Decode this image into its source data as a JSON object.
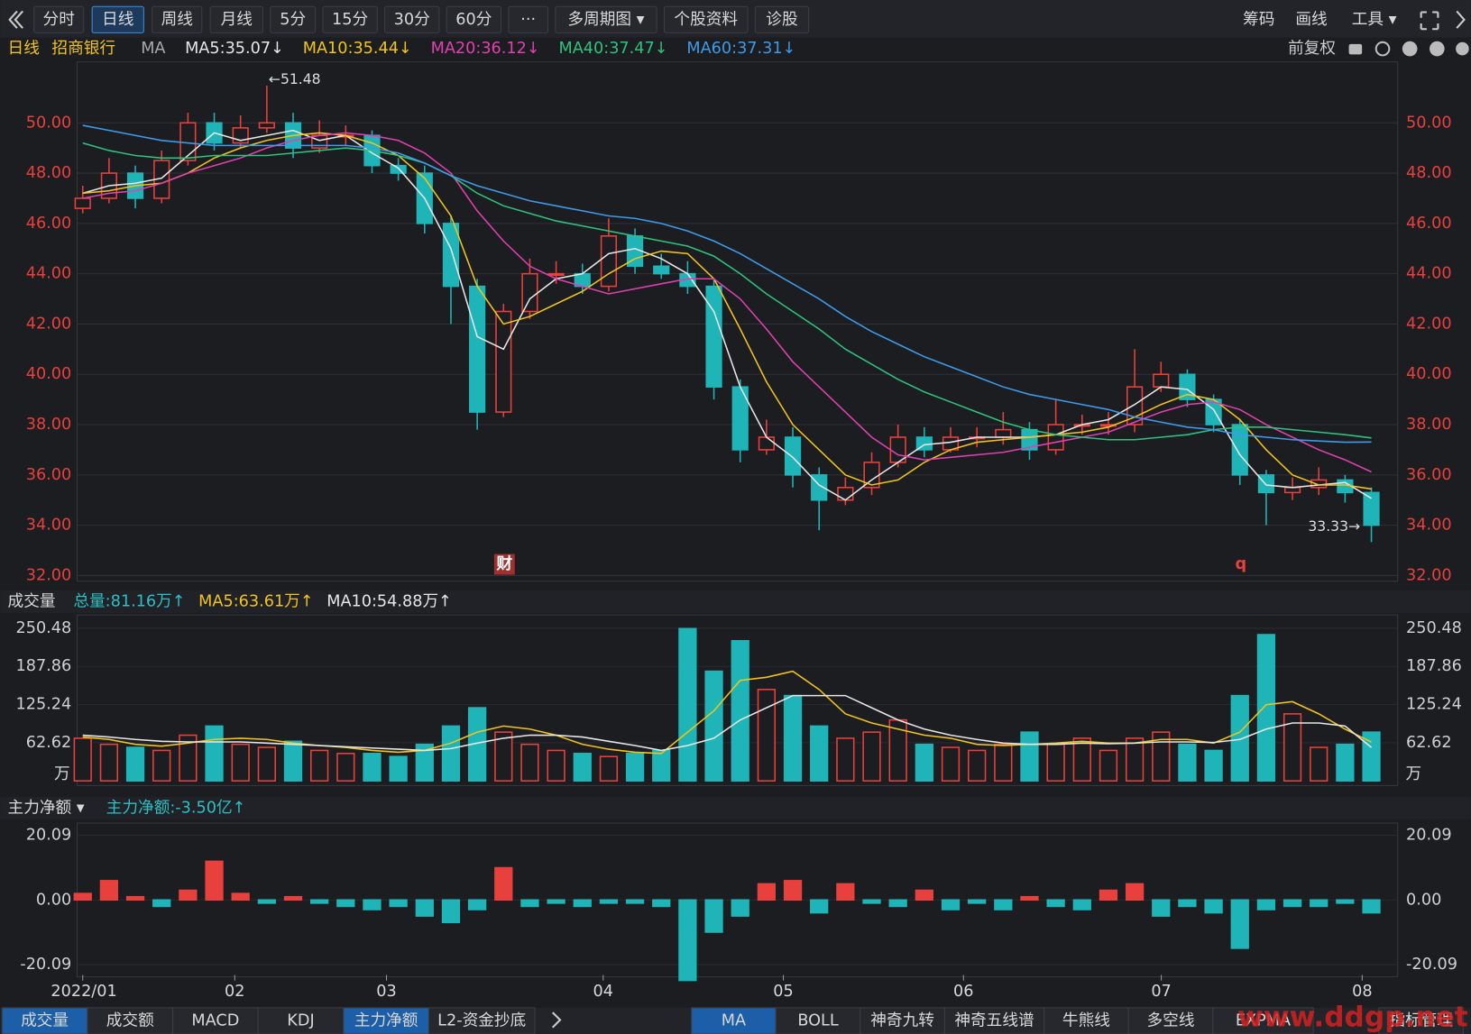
{
  "toolbar": {
    "left": [
      "分时",
      "日线",
      "周线",
      "月线",
      "5分",
      "15分",
      "30分",
      "60分",
      "···",
      "多周期图 ▾",
      "个股资料",
      "诊股"
    ],
    "right": [
      "筹码",
      "画线",
      "工具 ▾"
    ],
    "selected": 1
  },
  "legend": {
    "period": "日线",
    "name": "招商银行",
    "ma": "MA",
    "adjust": "前复权"
  },
  "chart_data": [
    {
      "type": "candlestick",
      "up_color": "#e8413d",
      "down_color": "#1fb5b8",
      "open": [
        46.6,
        47.0,
        48.0,
        47.0,
        48.5,
        50.0,
        49.2,
        49.8,
        50.0,
        49.0,
        49.5,
        49.5,
        48.3,
        48.0,
        46.0,
        43.5,
        38.5,
        42.5,
        44.0,
        44.0,
        43.5,
        45.5,
        44.3,
        44.0,
        43.5,
        39.5,
        37.0,
        37.5,
        36.0,
        35.0,
        35.5,
        36.5,
        37.5,
        37.0,
        37.5,
        37.5,
        37.8,
        37.0,
        38.0,
        38.0,
        38.0,
        39.5,
        40.0,
        39.0,
        38.0,
        36.0,
        35.3,
        35.5,
        35.8,
        35.3
      ],
      "high": [
        47.5,
        48.6,
        48.3,
        48.9,
        50.4,
        50.4,
        50.3,
        51.48,
        50.4,
        50.1,
        49.9,
        49.7,
        48.6,
        48.3,
        46.3,
        43.8,
        42.8,
        44.6,
        44.5,
        44.4,
        46.2,
        45.8,
        44.8,
        44.5,
        43.8,
        39.8,
        38.2,
        37.9,
        36.3,
        35.9,
        36.9,
        38.0,
        37.9,
        37.9,
        37.9,
        38.5,
        38.1,
        39.0,
        38.4,
        38.5,
        41.0,
        40.5,
        40.2,
        39.2,
        38.2,
        36.2,
        35.9,
        36.3,
        36.0,
        35.5
      ],
      "low": [
        46.4,
        46.8,
        46.6,
        46.8,
        48.3,
        48.9,
        49.0,
        49.6,
        48.6,
        48.8,
        49.1,
        48.0,
        47.7,
        45.6,
        42.0,
        37.8,
        38.3,
        42.2,
        43.6,
        43.2,
        43.3,
        44.0,
        43.8,
        43.2,
        39.0,
        36.5,
        36.8,
        35.5,
        33.8,
        34.8,
        35.2,
        36.3,
        36.7,
        36.9,
        37.1,
        37.2,
        36.6,
        36.8,
        37.6,
        37.6,
        37.7,
        39.3,
        38.7,
        37.7,
        35.6,
        34.0,
        35.0,
        35.2,
        34.9,
        33.33
      ],
      "close": [
        47.0,
        48.0,
        47.0,
        48.5,
        50.0,
        49.2,
        49.8,
        50.0,
        49.0,
        49.5,
        49.5,
        48.3,
        48.0,
        46.0,
        43.5,
        38.5,
        42.5,
        44.0,
        44.0,
        43.5,
        45.5,
        44.3,
        44.0,
        43.5,
        39.5,
        37.0,
        37.5,
        36.0,
        35.0,
        35.5,
        36.5,
        37.5,
        37.0,
        37.5,
        37.5,
        37.8,
        37.0,
        38.0,
        38.0,
        38.0,
        39.5,
        40.0,
        39.0,
        38.0,
        36.0,
        35.3,
        35.5,
        35.8,
        35.3,
        34.0
      ],
      "series": [
        {
          "name": "MA5:35.07↓",
          "color": "#e6e6e6",
          "values": [
            47.2,
            47.5,
            47.6,
            47.8,
            48.7,
            49.6,
            49.3,
            49.5,
            49.7,
            49.3,
            49.5,
            48.8,
            48.2,
            47.0,
            45.0,
            41.5,
            41.0,
            43.0,
            43.8,
            44.0,
            44.8,
            45.0,
            44.6,
            44.0,
            42.5,
            39.5,
            37.5,
            36.7,
            35.6,
            35.0,
            35.8,
            36.5,
            37.2,
            37.3,
            37.5,
            37.5,
            37.5,
            37.6,
            38.0,
            38.2,
            38.8,
            39.5,
            39.4,
            38.6,
            36.8,
            35.6,
            35.5,
            35.6,
            35.7,
            35.07
          ]
        },
        {
          "name": "MA10:35.44↓",
          "color": "#f0c419",
          "values": [
            47.2,
            47.3,
            47.5,
            47.6,
            48.0,
            48.6,
            49.0,
            49.3,
            49.5,
            49.6,
            49.5,
            49.2,
            48.7,
            47.8,
            46.3,
            43.5,
            42.0,
            42.3,
            42.8,
            43.3,
            44.0,
            44.6,
            44.9,
            44.8,
            43.8,
            41.8,
            39.7,
            38.0,
            37.0,
            36.0,
            35.6,
            35.8,
            36.5,
            37.0,
            37.3,
            37.4,
            37.5,
            37.6,
            37.7,
            37.9,
            38.3,
            38.8,
            39.2,
            39.0,
            38.2,
            37.0,
            36.0,
            35.6,
            35.6,
            35.44
          ]
        },
        {
          "name": "MA20:36.12↓",
          "color": "#e040b0",
          "values": [
            47.0,
            47.2,
            47.3,
            47.6,
            48.0,
            48.3,
            48.6,
            49.0,
            49.3,
            49.5,
            49.6,
            49.5,
            49.3,
            48.8,
            48.0,
            46.5,
            45.3,
            44.3,
            43.8,
            43.5,
            43.2,
            43.4,
            43.6,
            43.8,
            43.8,
            43.0,
            41.8,
            40.5,
            39.5,
            38.5,
            37.5,
            36.8,
            36.6,
            36.7,
            36.8,
            36.9,
            37.1,
            37.3,
            37.5,
            37.7,
            38.1,
            38.5,
            38.8,
            38.9,
            38.6,
            38.0,
            37.5,
            37.0,
            36.6,
            36.12
          ]
        },
        {
          "name": "MA40:37.47↓",
          "color": "#2ec27e",
          "values": [
            49.2,
            48.9,
            48.7,
            48.6,
            48.6,
            48.7,
            48.7,
            48.7,
            48.8,
            48.9,
            49.0,
            48.9,
            48.7,
            48.4,
            47.9,
            47.2,
            46.7,
            46.4,
            46.1,
            45.9,
            45.7,
            45.5,
            45.3,
            45.1,
            44.7,
            44.0,
            43.2,
            42.5,
            41.8,
            41.0,
            40.4,
            39.8,
            39.3,
            38.9,
            38.5,
            38.1,
            37.8,
            37.6,
            37.5,
            37.4,
            37.4,
            37.5,
            37.6,
            37.8,
            37.9,
            37.9,
            37.8,
            37.7,
            37.6,
            37.47
          ]
        },
        {
          "name": "MA60:37.31↓",
          "color": "#3d9be9",
          "values": [
            49.9,
            49.7,
            49.5,
            49.3,
            49.2,
            49.1,
            49.1,
            49.1,
            49.1,
            49.1,
            49.1,
            49.0,
            48.8,
            48.4,
            47.9,
            47.5,
            47.2,
            46.9,
            46.7,
            46.5,
            46.3,
            46.2,
            46.0,
            45.7,
            45.3,
            44.8,
            44.2,
            43.6,
            43.0,
            42.3,
            41.7,
            41.2,
            40.7,
            40.3,
            39.9,
            39.5,
            39.2,
            39.0,
            38.8,
            38.6,
            38.3,
            38.1,
            37.9,
            37.8,
            37.6,
            37.5,
            37.4,
            37.35,
            37.3,
            37.31
          ]
        }
      ],
      "xlim": [
        0,
        49
      ],
      "ylim": [
        31.8,
        52.1
      ],
      "yticks": [
        {
          "value": 32,
          "label": "32.00"
        },
        {
          "value": 34,
          "label": "34.00"
        },
        {
          "value": 36,
          "label": "36.00"
        },
        {
          "value": 38,
          "label": "38.00"
        },
        {
          "value": 40,
          "label": "40.00"
        },
        {
          "value": 42,
          "label": "42.00"
        },
        {
          "value": 44,
          "label": "44.00"
        },
        {
          "value": 46,
          "label": "46.00"
        },
        {
          "value": 48,
          "label": "48.00"
        },
        {
          "value": 50,
          "label": "50.00"
        }
      ],
      "grid": true,
      "tick_color": "#e8413d",
      "annotations": [
        {
          "text": "←51.48",
          "value": 51.48,
          "index": 7
        },
        {
          "text": "33.33→",
          "value": 33.33,
          "index": 49
        },
        {
          "text": "财",
          "index": 16
        },
        {
          "text": "q",
          "index": 44
        }
      ]
    },
    {
      "type": "bar",
      "title": "成交量",
      "legend": [
        {
          "text": "总量:81.16万↑",
          "color": "#2bc0c4"
        },
        {
          "text": "MA5:63.61万↑",
          "color": "#f0c419"
        },
        {
          "text": "MA10:54.88万↑",
          "color": "#e6e6e6"
        }
      ],
      "values": [
        70,
        60,
        55,
        50,
        75,
        90,
        60,
        55,
        65,
        50,
        45,
        45,
        40,
        60,
        90,
        120,
        80,
        60,
        50,
        45,
        40,
        45,
        50,
        250,
        180,
        230,
        150,
        140,
        90,
        70,
        80,
        100,
        60,
        55,
        50,
        60,
        80,
        60,
        70,
        50,
        70,
        80,
        60,
        50,
        140,
        240,
        110,
        55,
        60,
        80
      ],
      "lines": [
        {
          "color": "#f0c419",
          "values": [
            72,
            68,
            60,
            57,
            62,
            68,
            70,
            68,
            62,
            58,
            55,
            50,
            47,
            50,
            62,
            80,
            90,
            85,
            75,
            60,
            52,
            47,
            45,
            80,
            115,
            165,
            170,
            180,
            150,
            110,
            95,
            85,
            75,
            70,
            60,
            58,
            60,
            62,
            65,
            62,
            62,
            68,
            68,
            62,
            80,
            125,
            130,
            110,
            85,
            63.61
          ]
        },
        {
          "color": "#e6e6e6",
          "values": [
            75,
            72,
            68,
            65,
            64,
            64,
            64,
            62,
            60,
            58,
            56,
            54,
            52,
            50,
            53,
            62,
            70,
            75,
            75,
            72,
            65,
            58,
            50,
            58,
            70,
            100,
            120,
            140,
            140,
            140,
            120,
            100,
            85,
            75,
            68,
            62,
            60,
            60,
            62,
            61,
            62,
            64,
            64,
            63,
            68,
            85,
            95,
            95,
            90,
            54.88
          ]
        }
      ],
      "xlim": [
        0,
        49
      ],
      "ylim": [
        0,
        270
      ],
      "yticks": [
        62.62,
        125.24,
        187.86,
        250.48
      ],
      "unit": "万"
    },
    {
      "type": "bar",
      "title": "主力净额 ▾",
      "legend": [
        {
          "text": "主力净额:-3.50亿↑",
          "color": "#2bc0c4"
        }
      ],
      "values": [
        2,
        6,
        1,
        -2,
        3,
        12,
        2,
        -1,
        1,
        -1,
        -2,
        -3,
        -2,
        -5,
        -7,
        -3,
        10,
        -2,
        -1,
        -2,
        -1,
        -1,
        -2,
        -25,
        -10,
        -5,
        5,
        6,
        -4,
        5,
        -1,
        -2,
        3,
        -3,
        -1,
        -3,
        1,
        -2,
        -3,
        3,
        5,
        -5,
        -2,
        -4,
        -15,
        -3,
        -2,
        -2,
        -1,
        -4
      ],
      "xlim": [
        0,
        49
      ],
      "ylim": [
        -23.5,
        23.2
      ],
      "yticks": [
        -20.09,
        {
          "value": 0,
          "label": "0.00"
        },
        20.09
      ],
      "xticks": [
        {
          "value": 0,
          "label": "2022/01"
        },
        {
          "value": 5.78,
          "label": "02"
        },
        {
          "value": 11.55,
          "label": "03"
        },
        {
          "value": 19.79,
          "label": "04"
        },
        {
          "value": 26.64,
          "label": "05"
        },
        {
          "value": 33.49,
          "label": "06"
        },
        {
          "value": 41.01,
          "label": "07"
        },
        {
          "value": 48.65,
          "label": "08"
        }
      ]
    }
  ],
  "tabs": {
    "left": [
      "成交量",
      "成交额",
      "MACD",
      "KDJ",
      "主力净额",
      "L2-资金抄底"
    ],
    "right": [
      "MA",
      "BOLL",
      "神奇九转",
      "神奇五线谱",
      "牛熊线",
      "多空线",
      "EXPMA",
      "指标管理"
    ]
  },
  "watermark": "www.ddgp.net"
}
